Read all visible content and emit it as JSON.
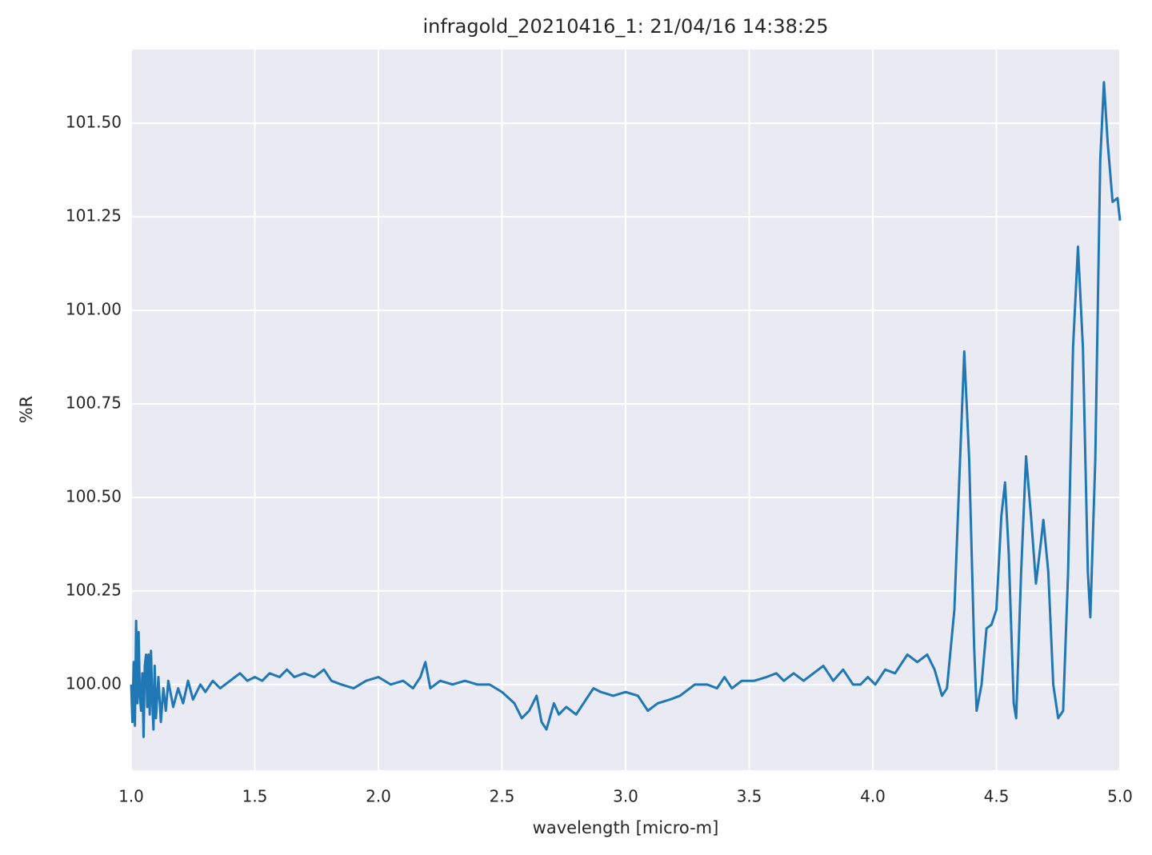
{
  "chart_data": {
    "type": "line",
    "title": "infragold_20210416_1:  21/04/16 14:38:25",
    "xlabel": "wavelength [micro-m]",
    "ylabel": "%R",
    "grid": true,
    "xlim": [
      1.0,
      5.0
    ],
    "ylim": [
      99.771,
      101.697
    ],
    "xticks": [
      {
        "value": 1.0,
        "label": "1.0"
      },
      {
        "value": 1.5,
        "label": "1.5"
      },
      {
        "value": 2.0,
        "label": "2.0"
      },
      {
        "value": 2.5,
        "label": "2.5"
      },
      {
        "value": 3.0,
        "label": "3.0"
      },
      {
        "value": 3.5,
        "label": "3.5"
      },
      {
        "value": 4.0,
        "label": "4.0"
      },
      {
        "value": 4.5,
        "label": "4.5"
      },
      {
        "value": 5.0,
        "label": "5.0"
      }
    ],
    "yticks": [
      {
        "value": 100.0,
        "label": "100.00"
      },
      {
        "value": 100.25,
        "label": "100.25"
      },
      {
        "value": 100.5,
        "label": "100.50"
      },
      {
        "value": 100.75,
        "label": "100.75"
      },
      {
        "value": 101.0,
        "label": "101.00"
      },
      {
        "value": 101.25,
        "label": "101.25"
      },
      {
        "value": 101.5,
        "label": "101.50"
      }
    ],
    "x": [
      1.0,
      1.005,
      1.01,
      1.015,
      1.02,
      1.025,
      1.03,
      1.035,
      1.04,
      1.045,
      1.05,
      1.055,
      1.06,
      1.065,
      1.07,
      1.075,
      1.08,
      1.085,
      1.09,
      1.095,
      1.1,
      1.11,
      1.12,
      1.13,
      1.14,
      1.15,
      1.17,
      1.19,
      1.21,
      1.23,
      1.25,
      1.28,
      1.3,
      1.33,
      1.36,
      1.4,
      1.44,
      1.47,
      1.5,
      1.53,
      1.56,
      1.6,
      1.63,
      1.66,
      1.7,
      1.74,
      1.78,
      1.81,
      1.85,
      1.9,
      1.95,
      2.0,
      2.05,
      2.1,
      2.14,
      2.17,
      2.19,
      2.21,
      2.25,
      2.3,
      2.35,
      2.4,
      2.45,
      2.5,
      2.55,
      2.58,
      2.61,
      2.64,
      2.66,
      2.68,
      2.71,
      2.73,
      2.76,
      2.8,
      2.84,
      2.87,
      2.9,
      2.95,
      3.0,
      3.05,
      3.09,
      3.13,
      3.18,
      3.22,
      3.28,
      3.33,
      3.37,
      3.4,
      3.43,
      3.47,
      3.52,
      3.57,
      3.61,
      3.64,
      3.68,
      3.72,
      3.76,
      3.8,
      3.84,
      3.88,
      3.92,
      3.95,
      3.98,
      4.01,
      4.05,
      4.09,
      4.14,
      4.18,
      4.22,
      4.25,
      4.28,
      4.3,
      4.33,
      4.35,
      4.37,
      4.39,
      4.41,
      4.42,
      4.44,
      4.46,
      4.48,
      4.5,
      4.52,
      4.535,
      4.55,
      4.57,
      4.58,
      4.6,
      4.62,
      4.64,
      4.66,
      4.68,
      4.69,
      4.71,
      4.73,
      4.75,
      4.77,
      4.79,
      4.81,
      4.83,
      4.85,
      4.87,
      4.88,
      4.9,
      4.92,
      4.935,
      4.95,
      4.97,
      4.99,
      5.0
    ],
    "series": [
      {
        "color": "#1f77b4",
        "values": [
          100.0,
          99.9,
          100.06,
          99.89,
          100.17,
          99.95,
          100.14,
          99.97,
          99.93,
          100.03,
          99.86,
          100.05,
          100.08,
          99.94,
          100.08,
          99.92,
          100.09,
          99.96,
          99.88,
          100.05,
          99.91,
          100.02,
          99.9,
          99.99,
          99.93,
          100.01,
          99.94,
          99.99,
          99.95,
          100.01,
          99.96,
          100.0,
          99.98,
          100.01,
          99.99,
          100.01,
          100.03,
          100.01,
          100.02,
          100.01,
          100.03,
          100.02,
          100.04,
          100.02,
          100.03,
          100.02,
          100.04,
          100.01,
          100.0,
          99.99,
          100.01,
          100.02,
          100.0,
          100.01,
          99.99,
          100.02,
          100.06,
          99.99,
          100.01,
          100.0,
          100.01,
          100.0,
          100.0,
          99.98,
          99.95,
          99.91,
          99.93,
          99.97,
          99.9,
          99.88,
          99.95,
          99.92,
          99.94,
          99.92,
          99.96,
          99.99,
          99.98,
          99.97,
          99.98,
          99.97,
          99.93,
          99.95,
          99.96,
          99.97,
          100.0,
          100.0,
          99.99,
          100.02,
          99.99,
          100.01,
          100.01,
          100.02,
          100.03,
          100.01,
          100.03,
          100.01,
          100.03,
          100.05,
          100.01,
          100.04,
          100.0,
          100.0,
          100.02,
          100.0,
          100.04,
          100.03,
          100.08,
          100.06,
          100.08,
          100.04,
          99.97,
          99.99,
          100.2,
          100.55,
          100.89,
          100.6,
          100.1,
          99.93,
          100.0,
          100.15,
          100.16,
          100.2,
          100.45,
          100.54,
          100.35,
          99.95,
          99.91,
          100.3,
          100.61,
          100.45,
          100.27,
          100.38,
          100.44,
          100.3,
          100.0,
          99.91,
          99.93,
          100.3,
          100.9,
          101.17,
          100.9,
          100.3,
          100.18,
          100.6,
          101.4,
          101.61,
          101.45,
          101.29,
          101.3,
          101.24
        ]
      }
    ]
  }
}
